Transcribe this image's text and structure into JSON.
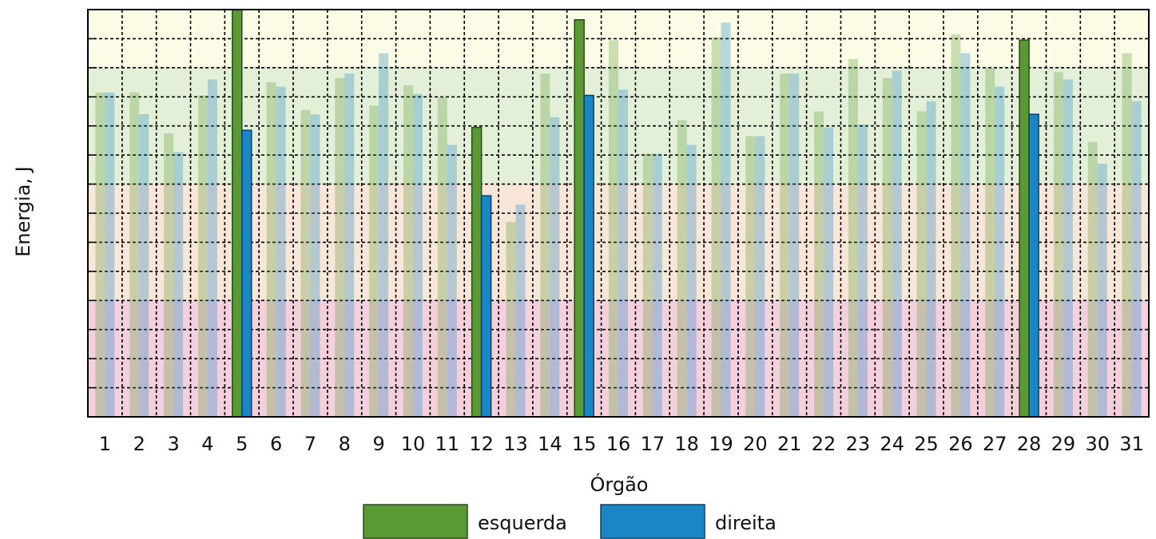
{
  "chart_data": {
    "type": "bar",
    "y_label": "Energia, J",
    "x_label": "Órgão",
    "categories": [
      "1",
      "2",
      "3",
      "4",
      "5",
      "6",
      "7",
      "8",
      "9",
      "10",
      "11",
      "12",
      "13",
      "14",
      "15",
      "16",
      "17",
      "18",
      "19",
      "20",
      "21",
      "22",
      "23",
      "24",
      "25",
      "26",
      "27",
      "28",
      "29",
      "30",
      "31"
    ],
    "series": [
      {
        "name": "esquerda",
        "color": "#5a9a35",
        "values": [
          11.15,
          11.15,
          9.75,
          11.05,
          14.0,
          11.5,
          10.55,
          11.65,
          10.7,
          11.4,
          11.0,
          9.95,
          6.7,
          11.8,
          13.65,
          12.95,
          9.05,
          10.2,
          13.05,
          9.65,
          11.8,
          10.5,
          12.3,
          11.65,
          10.5,
          13.15,
          12.0,
          12.95,
          11.85,
          9.45,
          12.5
        ]
      },
      {
        "name": "direita",
        "color": "#1a86c4",
        "values": [
          11.15,
          10.4,
          9.1,
          11.6,
          9.85,
          11.35,
          10.4,
          11.8,
          12.5,
          11.1,
          9.35,
          7.6,
          7.3,
          10.3,
          11.05,
          11.25,
          9.05,
          9.35,
          13.55,
          9.65,
          11.8,
          9.95,
          10.05,
          11.9,
          10.85,
          12.5,
          11.35,
          10.4,
          11.6,
          8.7,
          10.85
        ]
      }
    ],
    "highlighted": [
      "5",
      "12",
      "15",
      "28"
    ],
    "ylim": [
      0,
      14
    ],
    "yticks": [
      0,
      1,
      2,
      3,
      4,
      5,
      6,
      7,
      8,
      9,
      10,
      11,
      12,
      13,
      14
    ],
    "grid": true
  }
}
